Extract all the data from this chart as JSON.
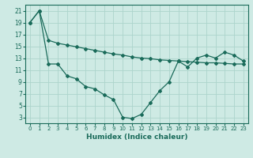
{
  "xlabel": "Humidex (Indice chaleur)",
  "bg_color": "#ceeae4",
  "grid_color": "#acd4cc",
  "line_color": "#1a6b5a",
  "xlim": [
    -0.5,
    23.5
  ],
  "ylim": [
    2,
    22
  ],
  "xticks": [
    0,
    1,
    2,
    3,
    4,
    5,
    6,
    7,
    8,
    9,
    10,
    11,
    12,
    13,
    14,
    15,
    16,
    17,
    18,
    19,
    20,
    21,
    22,
    23
  ],
  "yticks": [
    3,
    5,
    7,
    9,
    11,
    13,
    15,
    17,
    19,
    21
  ],
  "line1_x": [
    0,
    1,
    2,
    3,
    4,
    5,
    6,
    7,
    8,
    9,
    10,
    11,
    12,
    13,
    14,
    15,
    16,
    17,
    18,
    19,
    20,
    21,
    22,
    23
  ],
  "line1_y": [
    19.0,
    21.0,
    16.0,
    15.5,
    15.2,
    14.9,
    14.6,
    14.3,
    14.0,
    13.7,
    13.5,
    13.2,
    13.0,
    12.9,
    12.7,
    12.6,
    12.5,
    12.4,
    12.3,
    12.2,
    12.2,
    12.1,
    12.0,
    12.0
  ],
  "line2_x": [
    0,
    1,
    2,
    3,
    4,
    5,
    6,
    7,
    8,
    9,
    10,
    11,
    12,
    13,
    14,
    15,
    16,
    17,
    18,
    19,
    20,
    21,
    22,
    23
  ],
  "line2_y": [
    19.0,
    21.0,
    12.0,
    12.0,
    10.0,
    9.5,
    8.2,
    7.8,
    6.8,
    6.0,
    3.0,
    2.8,
    3.5,
    5.5,
    7.5,
    9.0,
    12.5,
    11.5,
    13.0,
    13.5,
    13.0,
    14.0,
    13.5,
    12.5
  ]
}
